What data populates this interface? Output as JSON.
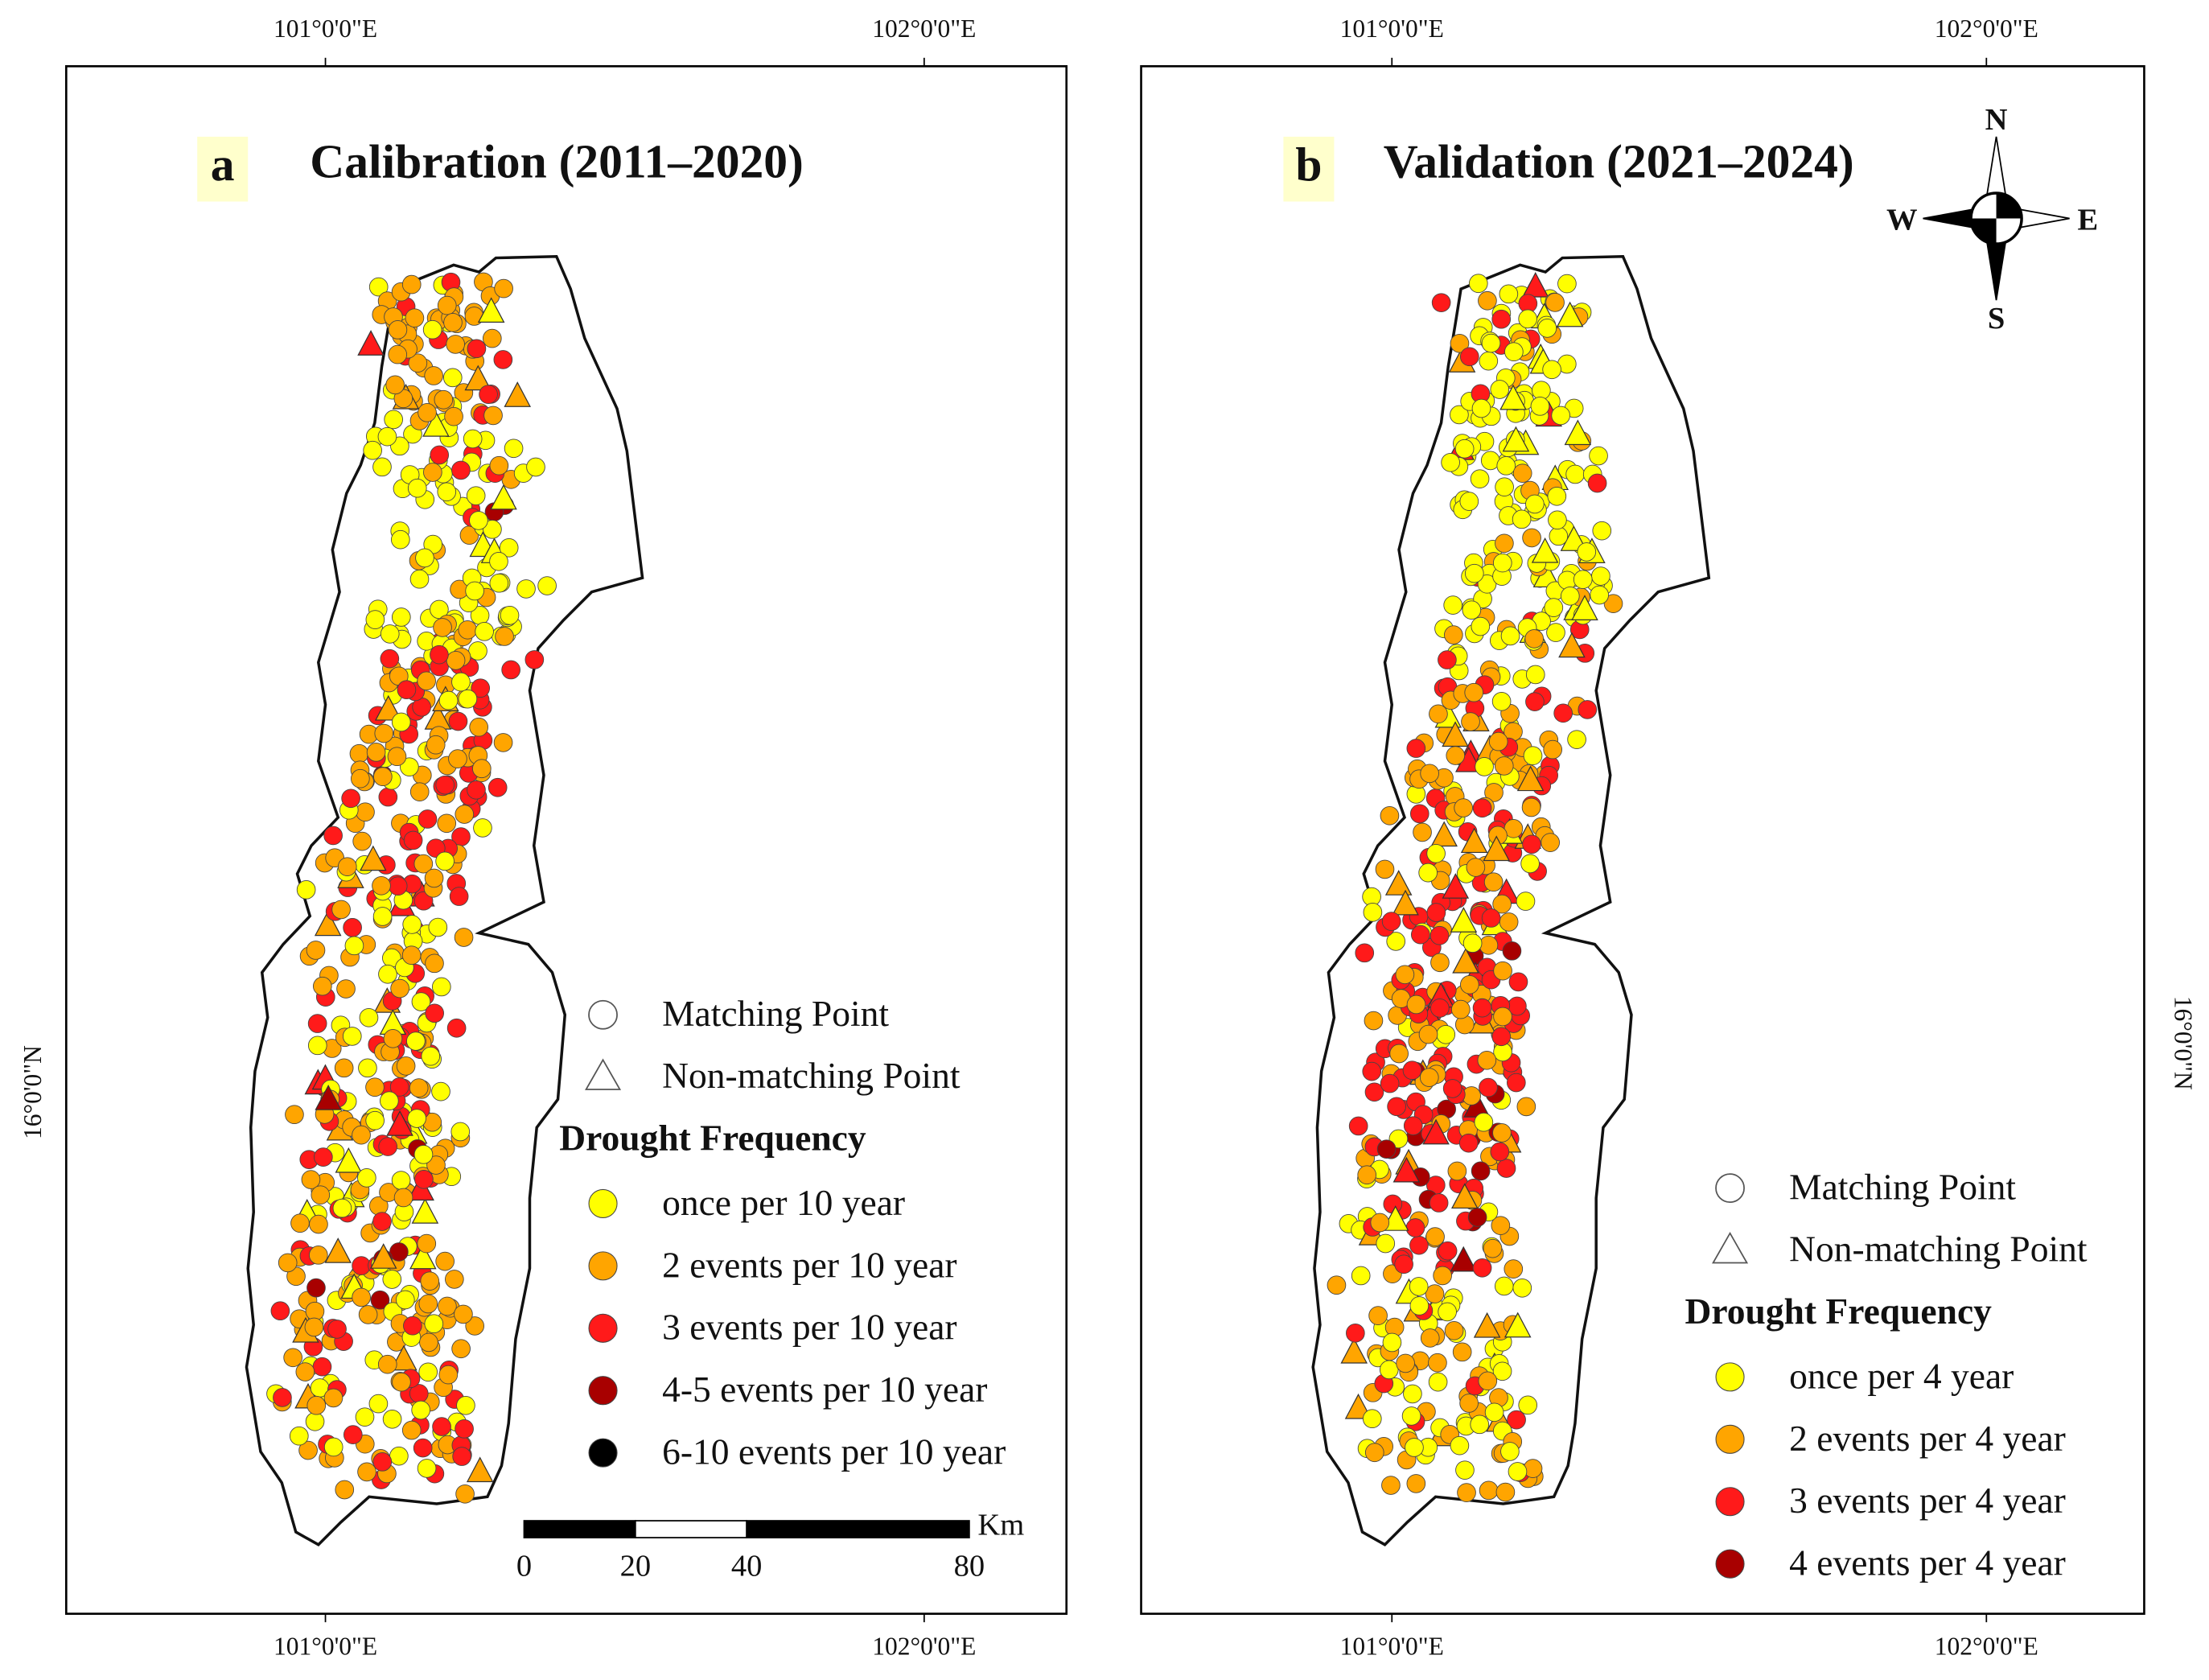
{
  "panels": [
    {
      "label": "a",
      "title": "Calibration (2011–2020)",
      "top_ticks": [
        "101°0'0\"E",
        "102°0'0\"E"
      ],
      "bottom_ticks": [
        "101°0'0\"E",
        "102°0'0\"E"
      ],
      "lat_tick": "16°0'0\"N",
      "legend": {
        "matching": "Matching Point",
        "non_matching": "Non-matching Point",
        "heading": "Drought Frequency",
        "classes": [
          {
            "label": "once per 10 year",
            "color": "#ffff00"
          },
          {
            "label": "2 events per 10 year",
            "color": "#ffa500"
          },
          {
            "label": "3 events per 10 year",
            "color": "#ff1a1a"
          },
          {
            "label": "4-5 events per 10 year",
            "color": "#a80000"
          },
          {
            "label": "6-10 events per 10 year",
            "color": "#000000"
          }
        ]
      }
    },
    {
      "label": "b",
      "title": "Validation (2021–2024)",
      "top_ticks": [
        "101°0'0\"E",
        "102°0'0\"E"
      ],
      "bottom_ticks": [
        "101°0'0\"E",
        "102°0'0\"E"
      ],
      "lat_tick": "16°0'0\"N",
      "legend": {
        "matching": "Matching Point",
        "non_matching": "Non-matching Point",
        "heading": "Drought Frequency",
        "classes": [
          {
            "label": "once per 4 year",
            "color": "#ffff00"
          },
          {
            "label": "2 events per 4 year",
            "color": "#ffa500"
          },
          {
            "label": "3 events per 4 year",
            "color": "#ff1a1a"
          },
          {
            "label": "4 events per 4 year",
            "color": "#a80000"
          }
        ]
      }
    }
  ],
  "scale_bar": {
    "ticks": [
      0,
      20,
      40,
      80
    ],
    "unit": "Km"
  },
  "compass": {
    "n": "N",
    "s": "S",
    "e": "E",
    "w": "W"
  }
}
